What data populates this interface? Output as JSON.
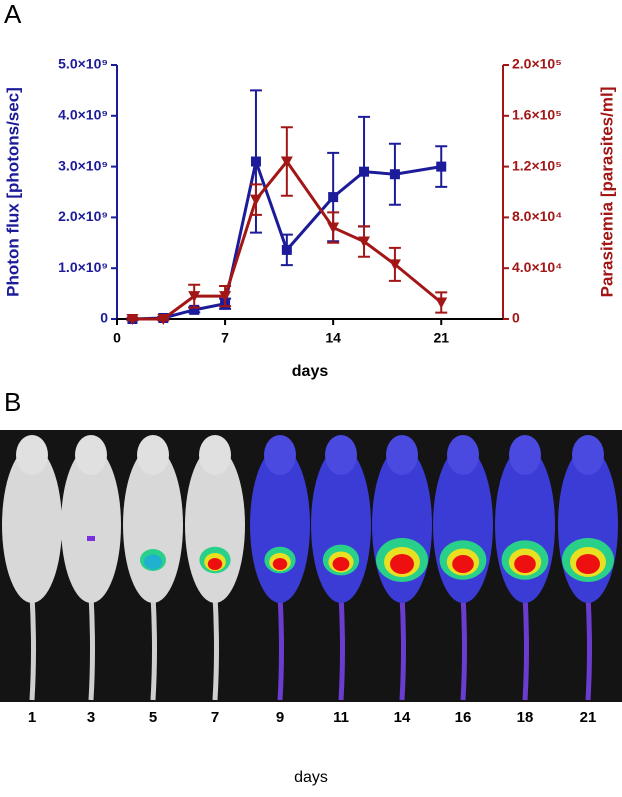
{
  "chart_data": {
    "type": "line",
    "panel_label": "A",
    "xlabel": "days",
    "ylabel": "Photon flux [photons/sec]",
    "y2label": "Parasitemia [parasites/ml]",
    "x": [
      1,
      3,
      5,
      7,
      9,
      11,
      14,
      16,
      18,
      21
    ],
    "xlim": [
      0,
      25
    ],
    "xticks": [
      0,
      7,
      14,
      21
    ],
    "ylim": [
      0,
      5000000000
    ],
    "yticks": [
      0,
      {
        "value": 1000000000,
        "label": "1.0×10⁹"
      },
      {
        "value": 2000000000,
        "label": "2.0×10⁹"
      },
      {
        "value": 3000000000,
        "label": "3.0×10⁹"
      },
      {
        "value": 4000000000,
        "label": "4.0×10⁹"
      },
      {
        "value": 5000000000,
        "label": "5.0×10⁹"
      }
    ],
    "y2lim": [
      0,
      200000
    ],
    "y2ticks": [
      0,
      {
        "value": 40000,
        "label": "4.0×10⁴"
      },
      {
        "value": 80000,
        "label": "8.0×10⁴"
      },
      {
        "value": 120000,
        "label": "1.2×10⁵"
      },
      {
        "value": 160000,
        "label": "1.6×10⁵"
      },
      {
        "value": 200000,
        "label": "2.0×10⁵"
      }
    ],
    "series": [
      {
        "color": "#1c1c9a",
        "marker": "square",
        "values": [
          0,
          20000000,
          180000000,
          300000000,
          3100000000,
          1360000000,
          2400000000,
          2900000000,
          2850000000,
          3000000000
        ],
        "errors": [
          10000000,
          20000000,
          50000000,
          100000000,
          1400000000,
          300000000,
          870000000,
          1080000000,
          600000000,
          400000000
        ]
      },
      {
        "color": "#a31616",
        "marker": "triangle-down",
        "axis": "y2",
        "values": [
          0,
          0,
          18000,
          18000,
          94000,
          124000,
          72000,
          61000,
          43000,
          13000
        ],
        "errors": [
          1000,
          1000,
          9000,
          8000,
          12000,
          27000,
          12000,
          12000,
          13000,
          8000
        ]
      }
    ]
  },
  "imaging": {
    "panel_label": "B",
    "day_labels": [
      "1",
      "3",
      "5",
      "7",
      "9",
      "11",
      "14",
      "16",
      "18",
      "21"
    ],
    "xlabel": "days"
  }
}
